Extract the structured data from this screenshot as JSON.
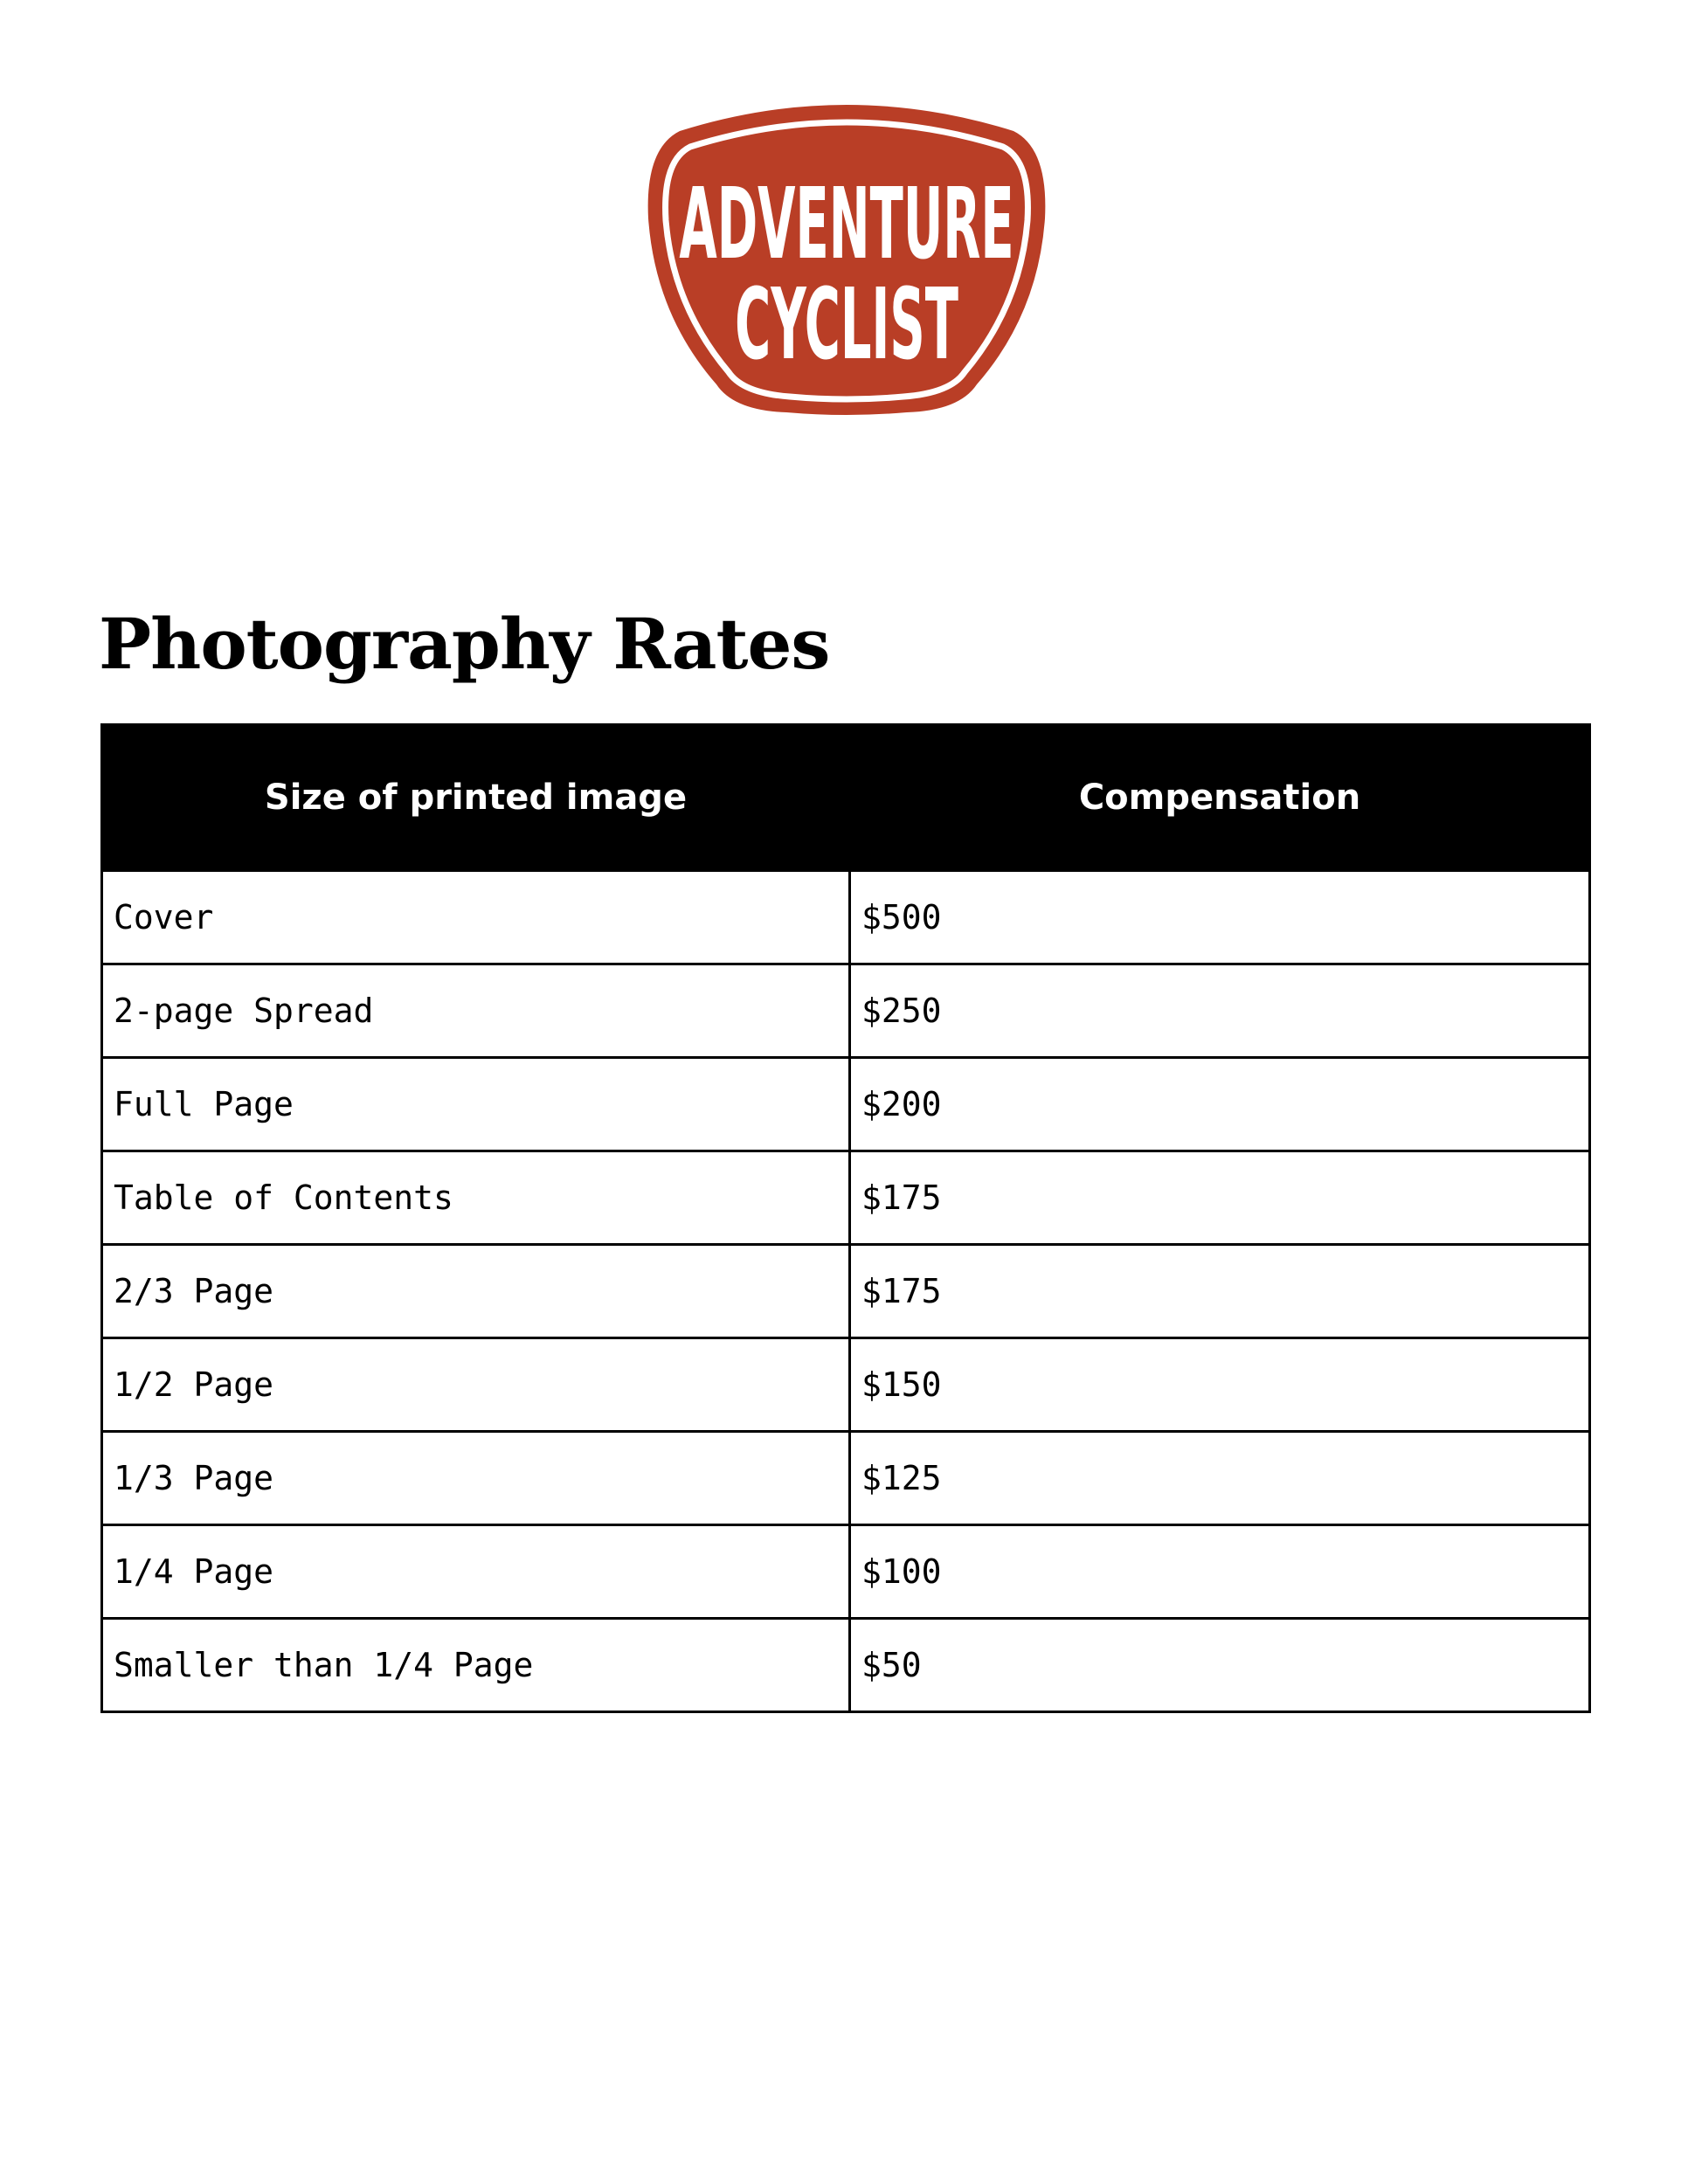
{
  "logo": {
    "line1": "ADVENTURE",
    "line2": "CYCLIST",
    "color": "#b93e26"
  },
  "title": "Photography Rates",
  "table": {
    "headers": [
      "Size of printed image",
      "Compensation"
    ],
    "rows": [
      [
        "Cover",
        "$500"
      ],
      [
        "2-page Spread",
        "$250"
      ],
      [
        "Full Page",
        "$200"
      ],
      [
        "Table of Contents",
        "$175"
      ],
      [
        "2/3 Page",
        "$175"
      ],
      [
        "1/2 Page",
        "$150"
      ],
      [
        "1/3 Page",
        "$125"
      ],
      [
        "1/4 Page",
        "$100"
      ],
      [
        "Smaller than 1/4 Page",
        "$50"
      ]
    ]
  }
}
